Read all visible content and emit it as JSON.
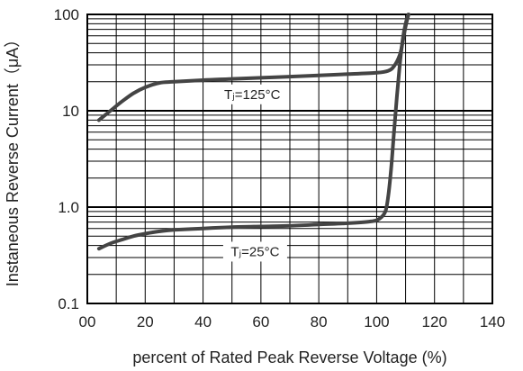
{
  "chart_data": {
    "type": "line",
    "xlabel": "percent of Rated  Peak Reverse Voltage (%)",
    "ylabel": "Instaneous Reverse Current（μA）",
    "xlim": [
      0,
      140
    ],
    "ylim": [
      0.1,
      100
    ],
    "y_scale": "log",
    "grid": true,
    "x_ticks": [
      0,
      20,
      40,
      60,
      80,
      100,
      120,
      140
    ],
    "x_tick_labels": [
      "00",
      "20",
      "40",
      "60",
      "80",
      "100",
      "120",
      "140"
    ],
    "y_ticks": [
      0.1,
      1,
      10,
      100
    ],
    "y_tick_labels": [
      "0.1",
      "1.0",
      "10",
      "100"
    ],
    "colors": {
      "curve": "#444444",
      "grid": "#000000",
      "text": "#222222"
    },
    "series": [
      {
        "label": "Tⱼ=125°C",
        "x": [
          4,
          8,
          12,
          16,
          20,
          25,
          30,
          40,
          50,
          60,
          70,
          80,
          90,
          100,
          104,
          106,
          108,
          109,
          110,
          111
        ],
        "y": [
          8,
          10,
          12.5,
          15.2,
          17.5,
          19.5,
          20,
          20.8,
          21.4,
          22,
          22.6,
          23.3,
          24,
          24.8,
          26,
          29,
          38,
          52,
          75,
          100
        ]
      },
      {
        "label": "Tⱼ=25°C",
        "x": [
          4,
          8,
          12,
          16,
          20,
          25,
          30,
          40,
          50,
          60,
          70,
          80,
          90,
          98,
          101,
          103,
          104,
          105,
          106,
          107,
          108,
          109,
          110,
          111
        ],
        "y": [
          0.37,
          0.42,
          0.46,
          0.5,
          0.53,
          0.56,
          0.58,
          0.6,
          0.62,
          0.63,
          0.64,
          0.66,
          0.68,
          0.71,
          0.76,
          0.9,
          1.3,
          2.5,
          6,
          14,
          30,
          55,
          80,
          100
        ]
      }
    ]
  }
}
